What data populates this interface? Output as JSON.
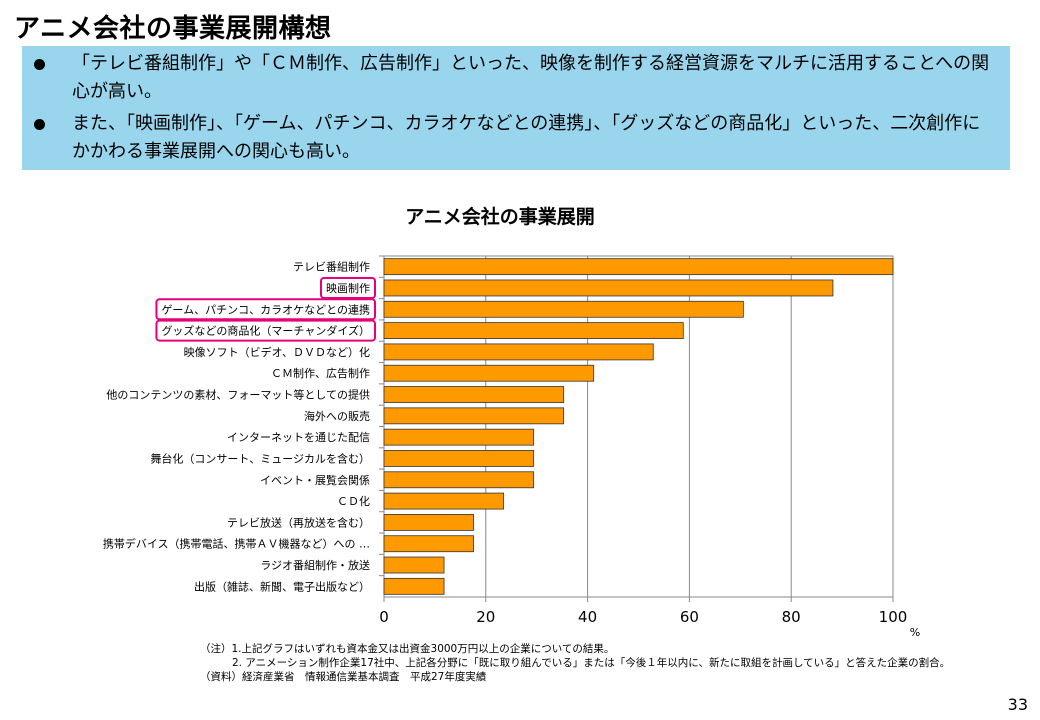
{
  "page": {
    "title": "アニメ会社の事業展開構想",
    "page_number": "33"
  },
  "bullets": [
    "「テレビ番組制作」や「ＣＭ制作、広告制作」といった、映像を制作する経営資源をマルチに活用することへの関心が高い。",
    "また、「映画制作」、「ゲーム、パチンコ、カラオケなどとの連携」、「グッズなどの商品化」といった、二次創作にかかわる事業展開への関心も高い。"
  ],
  "chart_data": {
    "type": "bar",
    "orientation": "horizontal",
    "title": "アニメ会社の事業展開",
    "categories": [
      "テレビ番組制作",
      "映画制作",
      "ゲーム、パチンコ、カラオケなどとの連携",
      "グッズなどの商品化（マーチャンダイズ）",
      "映像ソフト（ビデオ、ＤＶＤなど）化",
      "ＣＭ制作、広告制作",
      "他のコンテンツの素材、フォーマット等としての提供",
      "海外への販売",
      "インターネットを通じた配信",
      "舞台化（コンサート、ミュージカルを含む）",
      "イベント・展覧会関係",
      "ＣＤ化",
      "テレビ放送（再放送を含む）",
      "携帯デバイス（携帯電話、携帯ＡＶ機器など）への …",
      "ラジオ番組制作・放送",
      "出版（雑誌、新聞、電子出版など）"
    ],
    "values": [
      100,
      88.2,
      70.6,
      58.8,
      52.9,
      41.2,
      35.3,
      35.3,
      29.4,
      29.4,
      29.4,
      23.5,
      17.6,
      17.6,
      11.8,
      11.8
    ],
    "highlighted": [
      1,
      2,
      3
    ],
    "xlim": [
      0,
      100
    ],
    "xticks": [
      "0",
      "20",
      "40",
      "60",
      "80",
      "100"
    ],
    "xlabel": "%",
    "grid": true,
    "bar_color": "#ff9900",
    "highlight_color": "#e6007e"
  },
  "notes": {
    "note1": "（注）1.上記グラフはいずれも資本金又は出資金3000万円以上の企業についての結果。",
    "note2": "2. アニメーション制作企業17社中、上記各分野に「既に取り組んでいる」または「今後１年以内に、新たに取組を計画している」と答えた企業の割合。",
    "source": "（資料）経済産業省　情報通信業基本調査　平成27年度実績"
  }
}
